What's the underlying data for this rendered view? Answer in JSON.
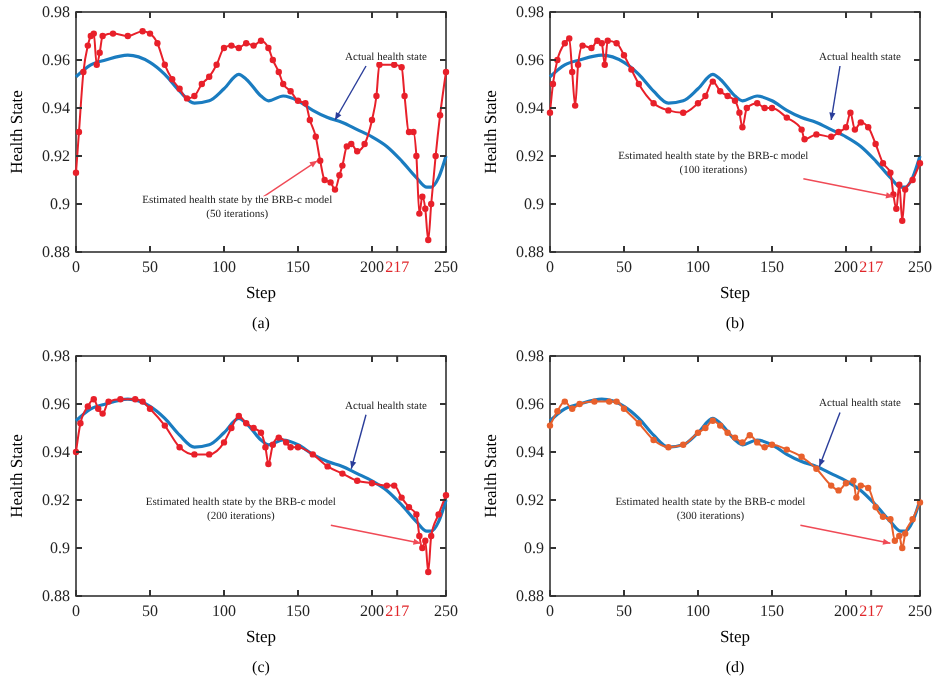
{
  "chart_data": [
    {
      "type": "line",
      "xlabel": "Step",
      "ylabel": "Health State",
      "xlim": [
        0,
        250
      ],
      "ylim": [
        0.88,
        0.98
      ],
      "xticks": [
        0,
        50,
        100,
        150,
        200,
        217,
        250
      ],
      "yticks": [
        0.88,
        0.9,
        0.92,
        0.94,
        0.96,
        0.98
      ],
      "series": [
        {
          "color": "#1a7cc0",
          "x": [
            0,
            10,
            20,
            35,
            50,
            60,
            70,
            80,
            90,
            100,
            110,
            115,
            125,
            130,
            140,
            150,
            160,
            170,
            180,
            190,
            200,
            210,
            220,
            230,
            237,
            240,
            245,
            250
          ],
          "values": [
            0.953,
            0.958,
            0.96,
            0.962,
            0.959,
            0.954,
            0.947,
            0.942,
            0.943,
            0.948,
            0.954,
            0.952,
            0.945,
            0.943,
            0.945,
            0.943,
            0.939,
            0.936,
            0.934,
            0.931,
            0.928,
            0.924,
            0.918,
            0.911,
            0.907,
            0.907,
            0.911,
            0.92
          ]
        },
        {
          "color": "#e8202a",
          "marker": "circle",
          "x": [
            0,
            2,
            5,
            8,
            10,
            12,
            14,
            16,
            18,
            25,
            35,
            45,
            50,
            55,
            60,
            65,
            70,
            75,
            80,
            85,
            90,
            95,
            100,
            105,
            110,
            115,
            120,
            125,
            130,
            133,
            137,
            140,
            145,
            150,
            155,
            158,
            162,
            165,
            168,
            172,
            175,
            178,
            180,
            183,
            186,
            190,
            195,
            200,
            203,
            205,
            215,
            220,
            222,
            225,
            228,
            230,
            232,
            234,
            236,
            238,
            240,
            243,
            246,
            250
          ],
          "values": [
            0.913,
            0.93,
            0.955,
            0.966,
            0.97,
            0.971,
            0.958,
            0.963,
            0.97,
            0.971,
            0.97,
            0.972,
            0.971,
            0.967,
            0.958,
            0.952,
            0.948,
            0.944,
            0.945,
            0.95,
            0.953,
            0.958,
            0.965,
            0.966,
            0.965,
            0.967,
            0.966,
            0.968,
            0.965,
            0.96,
            0.955,
            0.95,
            0.947,
            0.943,
            0.942,
            0.935,
            0.928,
            0.918,
            0.91,
            0.909,
            0.906,
            0.912,
            0.916,
            0.924,
            0.925,
            0.922,
            0.925,
            0.935,
            0.945,
            0.958,
            0.958,
            0.957,
            0.945,
            0.93,
            0.93,
            0.92,
            0.896,
            0.903,
            0.898,
            0.885,
            0.9,
            0.92,
            0.937,
            0.955
          ]
        }
      ],
      "annotations": [
        {
          "text": "Actual health state",
          "x": 175,
          "y": 0.935
        },
        {
          "text": "Estimated health state by the BRB-c model\n(50 iterations)",
          "x": 163,
          "y": 0.918
        },
        "(a)"
      ]
    },
    {
      "type": "line",
      "xlabel": "Step",
      "ylabel": "Health State",
      "xlim": [
        0,
        250
      ],
      "ylim": [
        0.88,
        0.98
      ],
      "xticks": [
        0,
        50,
        100,
        150,
        200,
        217,
        250
      ],
      "yticks": [
        0.88,
        0.9,
        0.92,
        0.94,
        0.96,
        0.98
      ],
      "series": [
        {
          "color": "#1a7cc0",
          "x": [
            0,
            10,
            20,
            35,
            50,
            60,
            70,
            80,
            90,
            100,
            110,
            115,
            125,
            130,
            140,
            150,
            160,
            170,
            180,
            190,
            200,
            210,
            220,
            230,
            237,
            240,
            245,
            250
          ],
          "values": [
            0.953,
            0.958,
            0.96,
            0.962,
            0.959,
            0.954,
            0.947,
            0.942,
            0.943,
            0.948,
            0.954,
            0.952,
            0.945,
            0.943,
            0.945,
            0.943,
            0.939,
            0.936,
            0.934,
            0.931,
            0.928,
            0.924,
            0.918,
            0.911,
            0.907,
            0.907,
            0.911,
            0.92
          ]
        },
        {
          "color": "#e8202a",
          "marker": "circle",
          "x": [
            0,
            2,
            5,
            10,
            13,
            15,
            17,
            19,
            22,
            28,
            32,
            35,
            37,
            39,
            45,
            50,
            55,
            60,
            70,
            80,
            90,
            100,
            105,
            110,
            115,
            120,
            125,
            128,
            130,
            133,
            140,
            145,
            150,
            160,
            170,
            172,
            180,
            190,
            195,
            200,
            203,
            206,
            210,
            215,
            220,
            225,
            230,
            232,
            234,
            236,
            238,
            240,
            245,
            250
          ],
          "values": [
            0.938,
            0.95,
            0.96,
            0.967,
            0.969,
            0.955,
            0.941,
            0.958,
            0.966,
            0.965,
            0.968,
            0.967,
            0.958,
            0.968,
            0.967,
            0.962,
            0.956,
            0.95,
            0.942,
            0.939,
            0.938,
            0.942,
            0.945,
            0.951,
            0.947,
            0.945,
            0.943,
            0.938,
            0.932,
            0.94,
            0.942,
            0.94,
            0.94,
            0.936,
            0.931,
            0.927,
            0.929,
            0.928,
            0.93,
            0.932,
            0.938,
            0.931,
            0.934,
            0.932,
            0.925,
            0.917,
            0.913,
            0.904,
            0.898,
            0.908,
            0.893,
            0.906,
            0.91,
            0.917
          ]
        }
      ],
      "annotations": [
        {
          "text": "Actual health state",
          "x": 190,
          "y": 0.935
        },
        {
          "text": "Estimated health state by the BRB-c model\n(100 iterations)",
          "x": 232,
          "y": 0.903
        },
        "(b)"
      ]
    },
    {
      "type": "line",
      "xlabel": "Step",
      "ylabel": "Health State",
      "xlim": [
        0,
        250
      ],
      "ylim": [
        0.88,
        0.98
      ],
      "xticks": [
        0,
        50,
        100,
        150,
        200,
        217,
        250
      ],
      "yticks": [
        0.88,
        0.9,
        0.92,
        0.94,
        0.96,
        0.98
      ],
      "series": [
        {
          "color": "#1a7cc0",
          "x": [
            0,
            10,
            20,
            35,
            50,
            60,
            70,
            80,
            90,
            100,
            110,
            115,
            125,
            130,
            140,
            150,
            160,
            170,
            180,
            190,
            200,
            210,
            220,
            230,
            237,
            240,
            245,
            250
          ],
          "values": [
            0.953,
            0.958,
            0.96,
            0.962,
            0.959,
            0.954,
            0.947,
            0.942,
            0.943,
            0.948,
            0.954,
            0.952,
            0.945,
            0.943,
            0.945,
            0.943,
            0.939,
            0.936,
            0.934,
            0.931,
            0.928,
            0.924,
            0.918,
            0.911,
            0.907,
            0.907,
            0.911,
            0.92
          ]
        },
        {
          "color": "#e8202a",
          "marker": "circle",
          "x": [
            0,
            3,
            8,
            12,
            15,
            18,
            22,
            30,
            40,
            45,
            50,
            60,
            70,
            80,
            90,
            100,
            105,
            110,
            115,
            120,
            125,
            128,
            130,
            133,
            137,
            142,
            145,
            150,
            160,
            170,
            180,
            190,
            200,
            210,
            215,
            220,
            225,
            230,
            232,
            234,
            236,
            238,
            240,
            245,
            250
          ],
          "values": [
            0.94,
            0.952,
            0.959,
            0.962,
            0.958,
            0.956,
            0.961,
            0.962,
            0.962,
            0.961,
            0.958,
            0.951,
            0.942,
            0.939,
            0.939,
            0.944,
            0.95,
            0.955,
            0.952,
            0.95,
            0.948,
            0.942,
            0.935,
            0.943,
            0.946,
            0.944,
            0.942,
            0.942,
            0.939,
            0.934,
            0.931,
            0.928,
            0.927,
            0.926,
            0.926,
            0.921,
            0.917,
            0.914,
            0.905,
            0.9,
            0.903,
            0.89,
            0.905,
            0.914,
            0.922
          ]
        }
      ],
      "annotations": [
        {
          "text": "Actual health state",
          "x": 186,
          "y": 0.933
        },
        {
          "text": "Estimated health state by the BRB-c model\n(200 iterations)",
          "x": 233,
          "y": 0.902
        },
        "(c)"
      ]
    },
    {
      "type": "line",
      "xlabel": "Step",
      "ylabel": "Health State",
      "xlim": [
        0,
        250
      ],
      "ylim": [
        0.88,
        0.98
      ],
      "xticks": [
        0,
        50,
        100,
        150,
        200,
        217,
        250
      ],
      "yticks": [
        0.88,
        0.9,
        0.92,
        0.94,
        0.96,
        0.98
      ],
      "series": [
        {
          "color": "#1a7cc0",
          "x": [
            0,
            10,
            20,
            35,
            50,
            60,
            70,
            80,
            90,
            100,
            110,
            115,
            125,
            130,
            140,
            150,
            160,
            170,
            180,
            190,
            200,
            210,
            220,
            230,
            237,
            240,
            245,
            250
          ],
          "values": [
            0.953,
            0.958,
            0.96,
            0.962,
            0.959,
            0.954,
            0.947,
            0.942,
            0.943,
            0.948,
            0.954,
            0.952,
            0.945,
            0.943,
            0.945,
            0.943,
            0.939,
            0.936,
            0.934,
            0.931,
            0.928,
            0.924,
            0.918,
            0.911,
            0.907,
            0.907,
            0.911,
            0.92
          ]
        },
        {
          "color": "#e8602c",
          "marker": "circle",
          "x": [
            0,
            5,
            10,
            15,
            20,
            30,
            40,
            45,
            50,
            60,
            70,
            80,
            90,
            100,
            105,
            110,
            115,
            120,
            125,
            130,
            135,
            140,
            145,
            150,
            160,
            170,
            180,
            190,
            195,
            200,
            205,
            207,
            210,
            215,
            220,
            225,
            230,
            233,
            236,
            238,
            240,
            245,
            250
          ],
          "values": [
            0.951,
            0.957,
            0.961,
            0.958,
            0.96,
            0.961,
            0.961,
            0.961,
            0.958,
            0.952,
            0.945,
            0.942,
            0.943,
            0.948,
            0.95,
            0.953,
            0.951,
            0.948,
            0.946,
            0.944,
            0.947,
            0.944,
            0.942,
            0.943,
            0.941,
            0.938,
            0.933,
            0.926,
            0.924,
            0.927,
            0.928,
            0.921,
            0.926,
            0.925,
            0.917,
            0.913,
            0.912,
            0.903,
            0.905,
            0.9,
            0.906,
            0.912,
            0.919
          ]
        }
      ],
      "annotations": [
        {
          "text": "Actual health state",
          "x": 182,
          "y": 0.934
        },
        {
          "text": "Estimated health state by the BRB-c model\n(300 iterations)",
          "x": 230,
          "y": 0.902
        },
        "(d)"
      ]
    }
  ]
}
